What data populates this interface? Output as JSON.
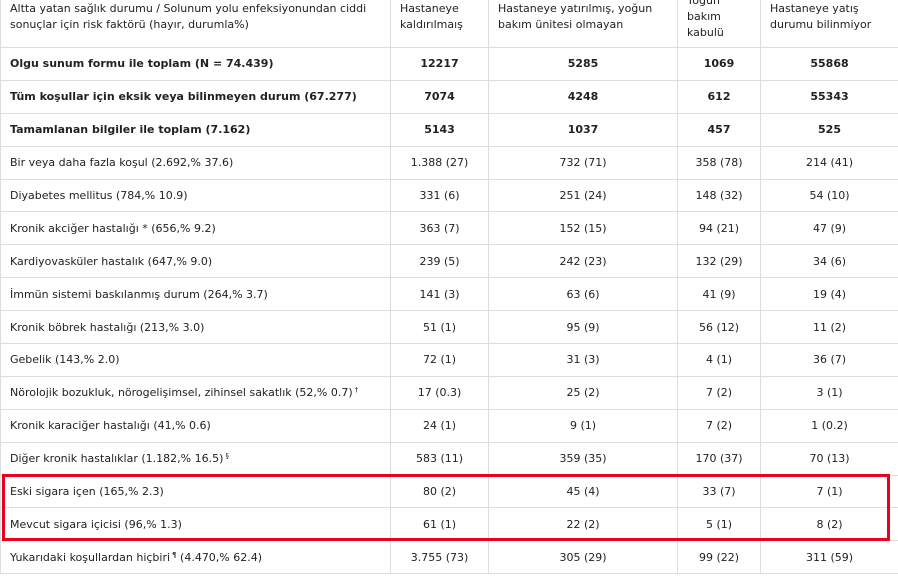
{
  "header": {
    "condition": "Altta yatan sağlık durumu / Solunum yolu enfeksiyonundan ciddi sonuçlar için risk faktörü (hayır, durumla%)",
    "hospitalized": "Hastaneye kaldırılmaış",
    "hospitalized_no_icu": "Hastaneye yatırılmış, yoğun bakım ünitesi olmayan",
    "icu": "Yoğun bakım kabulü",
    "unknown": "Hastaneye yatış durumu bilinmiyor"
  },
  "rows": [
    {
      "label": "Olgu sunum formu ile toplam (N = 74.439)",
      "bold": true,
      "values": [
        "12217",
        "5285",
        "1069",
        "55868"
      ]
    },
    {
      "label": "Tüm koşullar için eksik veya bilinmeyen durum (67.277)",
      "bold": true,
      "values": [
        "7074",
        "4248",
        "612",
        "55343"
      ]
    },
    {
      "label": "Tamamlanan bilgiler ile toplam (7.162)",
      "bold": true,
      "values": [
        "5143",
        "1037",
        "457",
        "525"
      ]
    },
    {
      "label": "Bir veya daha fazla koşul (2.692,% 37.6)",
      "values": [
        "1.388 (27)",
        "732 (71)",
        "358 (78)",
        "214 (41)"
      ]
    },
    {
      "label": "Diyabetes mellitus (784,% 10.9)",
      "values": [
        "331 (6)",
        "251 (24)",
        "148 (32)",
        "54 (10)"
      ]
    },
    {
      "label": "Kronik akciğer hastalığı * (656,% 9.2)",
      "values": [
        "363 (7)",
        "152 (15)",
        "94 (21)",
        "47 (9)"
      ]
    },
    {
      "label": "Kardiyovasküler hastalık (647,% 9.0)",
      "values": [
        "239 (5)",
        "242 (23)",
        "132 (29)",
        "34 (6)"
      ]
    },
    {
      "label": "İmmün sistemi baskılanmış durum (264,% 3.7)",
      "values": [
        "141 (3)",
        "63 (6)",
        "41 (9)",
        "19 (4)"
      ]
    },
    {
      "label": "Kronik böbrek hastalığı (213,% 3.0)",
      "values": [
        "51 (1)",
        "95 (9)",
        "56 (12)",
        "11 (2)"
      ]
    },
    {
      "label": "Gebelik (143,% 2.0)",
      "values": [
        "72 (1)",
        "31 (3)",
        "4 (1)",
        "36 (7)"
      ]
    },
    {
      "label": "Nörolojik bozukluk, nörogelişimsel, zihinsel sakatlık (52,% 0.7)",
      "sup": "†",
      "values": [
        "17 (0.3)",
        "25 (2)",
        "7 (2)",
        "3 (1)"
      ]
    },
    {
      "label": "Kronik karaciğer hastalığı (41,% 0.6)",
      "values": [
        "24 (1)",
        "9 (1)",
        "7 (2)",
        "1 (0.2)"
      ]
    },
    {
      "label": "Diğer kronik hastalıklar (1.182,% 16.5)",
      "sup": "§",
      "values": [
        "583 (11)",
        "359 (35)",
        "170 (37)",
        "70 (13)"
      ]
    },
    {
      "label": "Eski sigara içen (165,% 2.3)",
      "values": [
        "80 (2)",
        "45 (4)",
        "33 (7)",
        "7 (1)"
      ]
    },
    {
      "label": "Mevcut sigara içicisi (96,% 1.3)",
      "values": [
        "61 (1)",
        "22 (2)",
        "5 (1)",
        "8 (2)"
      ]
    },
    {
      "label": "Yukarıdaki koşullardan hiçbiri",
      "sup_inline": "¶",
      "label_tail": " (4.470,% 62.4)",
      "values": [
        "3.755 (73)",
        "305 (29)",
        "99 (22)",
        "311 (59)"
      ]
    }
  ],
  "colors": {
    "highlight": "#e8001c",
    "border": "#dddddd"
  }
}
